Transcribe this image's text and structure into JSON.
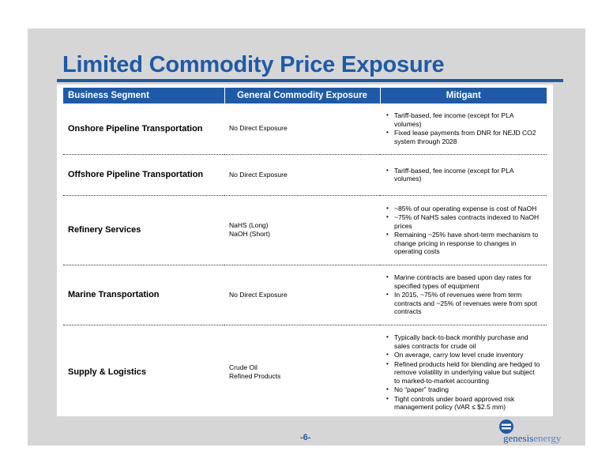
{
  "title": "Limited Commodity Price Exposure",
  "table": {
    "headers": [
      "Business Segment",
      "General Commodity Exposure",
      "Mitigant"
    ],
    "rows": [
      {
        "segment": "Onshore Pipeline Transportation",
        "exposure": [
          "No Direct Exposure"
        ],
        "mitigants": [
          "Tariff-based, fee income (except for PLA volumes)",
          "Fixed lease payments from DNR for NEJD CO2 system through 2028"
        ]
      },
      {
        "segment": "Offshore Pipeline Transportation",
        "exposure": [
          "No Direct Exposure"
        ],
        "mitigants": [
          "Tariff-based, fee income (except for PLA volumes)"
        ]
      },
      {
        "segment": "Refinery Services",
        "exposure": [
          "NaHS (Long)",
          "NaOH (Short)"
        ],
        "mitigants": [
          "~85% of our operating expense is cost of NaOH",
          "~75% of NaHS sales contracts indexed to NaOH prices",
          "Remaining ~25% have short-term mechanism to change pricing in response to changes in operating costs"
        ]
      },
      {
        "segment": "Marine Transportation",
        "exposure": [
          "No Direct Exposure"
        ],
        "mitigants": [
          "Marine contracts are based upon day rates for specified types of equipment",
          "In 2015, ~75% of revenues were from term contracts and ~25% of revenues were from spot contracts"
        ]
      },
      {
        "segment": "Supply & Logistics",
        "exposure": [
          "Crude Oil",
          "Refined Products"
        ],
        "mitigants": [
          "Typically back-to-back monthly purchase and sales contracts for crude oil",
          "On average, carry low level crude inventory",
          "Refined products held for blending are hedged to remove volatility in underlying value but subject to marked-to-market accounting",
          "No “paper” trading",
          "Tight controls under board approved risk management policy (VAR ≤ $2.5 mm)"
        ]
      }
    ]
  },
  "page_number": "-6-",
  "logo": {
    "brand_main": "genesis",
    "brand_light": "energy",
    "icon": "genesis-e-logo-icon",
    "color": "#1e5aa8"
  },
  "colors": {
    "accent": "#1e5aa8",
    "slide_bg": "#d6d6d6"
  }
}
